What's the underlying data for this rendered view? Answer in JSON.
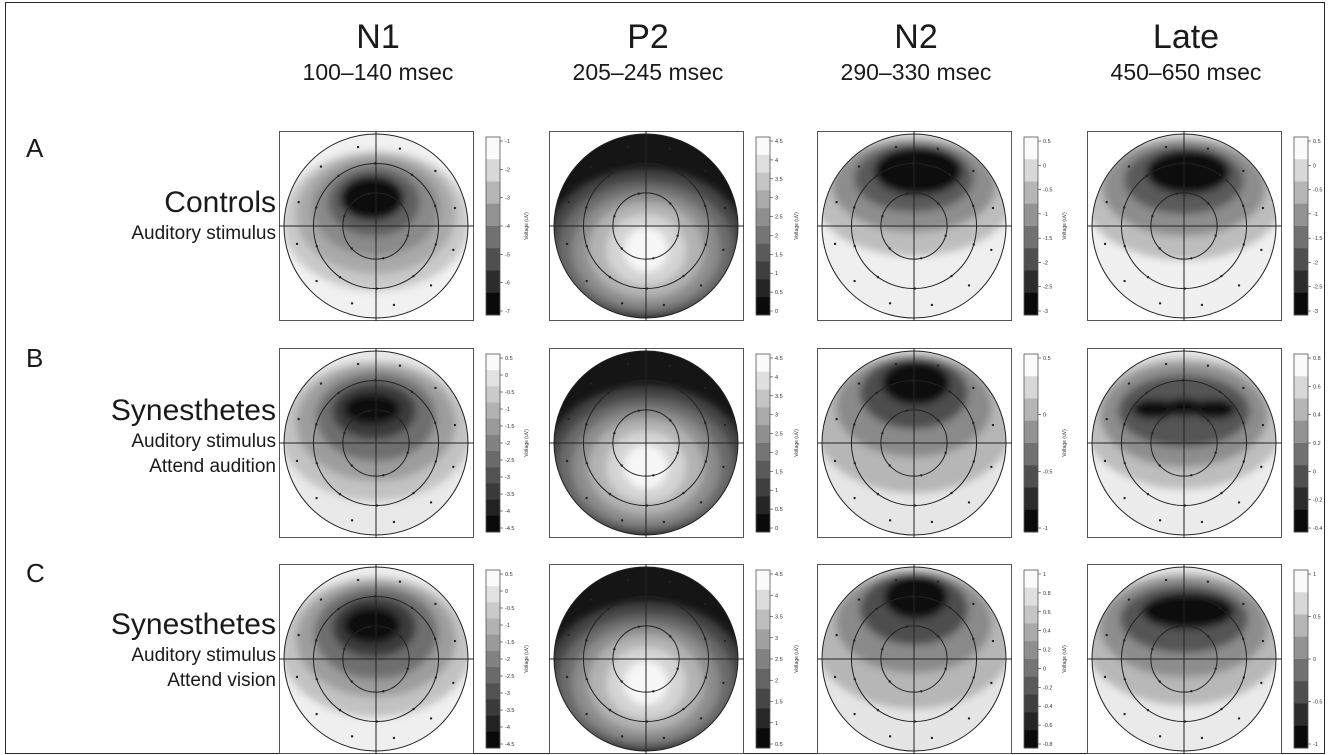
{
  "columns": [
    {
      "name": "N1",
      "time": "100–140 msec"
    },
    {
      "name": "P2",
      "time": "205–245 msec"
    },
    {
      "name": "N2",
      "time": "290–330 msec"
    },
    {
      "name": "Late",
      "time": "450–650 msec"
    }
  ],
  "rows": [
    {
      "letter": "A",
      "group": "Controls",
      "conditions": [
        "Auditory stimulus"
      ]
    },
    {
      "letter": "B",
      "group": "Synesthetes",
      "conditions": [
        "Auditory stimulus",
        "Attend audition"
      ]
    },
    {
      "letter": "C",
      "group": "Synesthetes",
      "conditions": [
        "Auditory stimulus",
        "Attend vision"
      ]
    }
  ],
  "colorbar_label": "Voltage (uV)",
  "colorbar_ticks": {
    "A": [
      [
        "-1",
        "-2",
        "-3",
        "-4",
        "-5",
        "-6",
        "-7"
      ],
      [
        "4.5",
        "4",
        "3.5",
        "3",
        "2.5",
        "2",
        "1.5",
        "1",
        "0.5",
        "0"
      ],
      [
        "0.5",
        "0",
        "-0.5",
        "-1",
        "-1.5",
        "-2",
        "-2.5",
        "-3"
      ],
      [
        "0.5",
        "0",
        "-0.5",
        "-1",
        "-1.5",
        "-2",
        "-2.5",
        "-3"
      ]
    ],
    "B": [
      [
        "0.5",
        "0",
        "-0.5",
        "-1",
        "-1.5",
        "-2",
        "-2.5",
        "-3",
        "-3.5",
        "-4",
        "-4.5"
      ],
      [
        "4.5",
        "4",
        "3.5",
        "3",
        "2.5",
        "2",
        "1.5",
        "1",
        "0.5",
        "0"
      ],
      [
        "0.5",
        "0",
        "-0.5",
        "-1"
      ],
      [
        "0.8",
        "0.6",
        "0.4",
        "0.2",
        "0",
        "-0.2",
        "-0.4"
      ]
    ],
    "C": [
      [
        "0.5",
        "0",
        "-0.5",
        "-1",
        "-1.5",
        "-2",
        "-2.5",
        "-3",
        "-3.5",
        "-4",
        "-4.5"
      ],
      [
        "4.5",
        "4",
        "3.5",
        "3",
        "2.5",
        "2",
        "1.5",
        "1",
        "0.5"
      ],
      [
        "1",
        "0.8",
        "0.6",
        "0.4",
        "0.2",
        "0",
        "-0.2",
        "-0.4",
        "-0.6",
        "-0.8"
      ],
      [
        "1",
        "0.5",
        "0",
        "-0.5",
        "-1"
      ]
    ]
  }
}
